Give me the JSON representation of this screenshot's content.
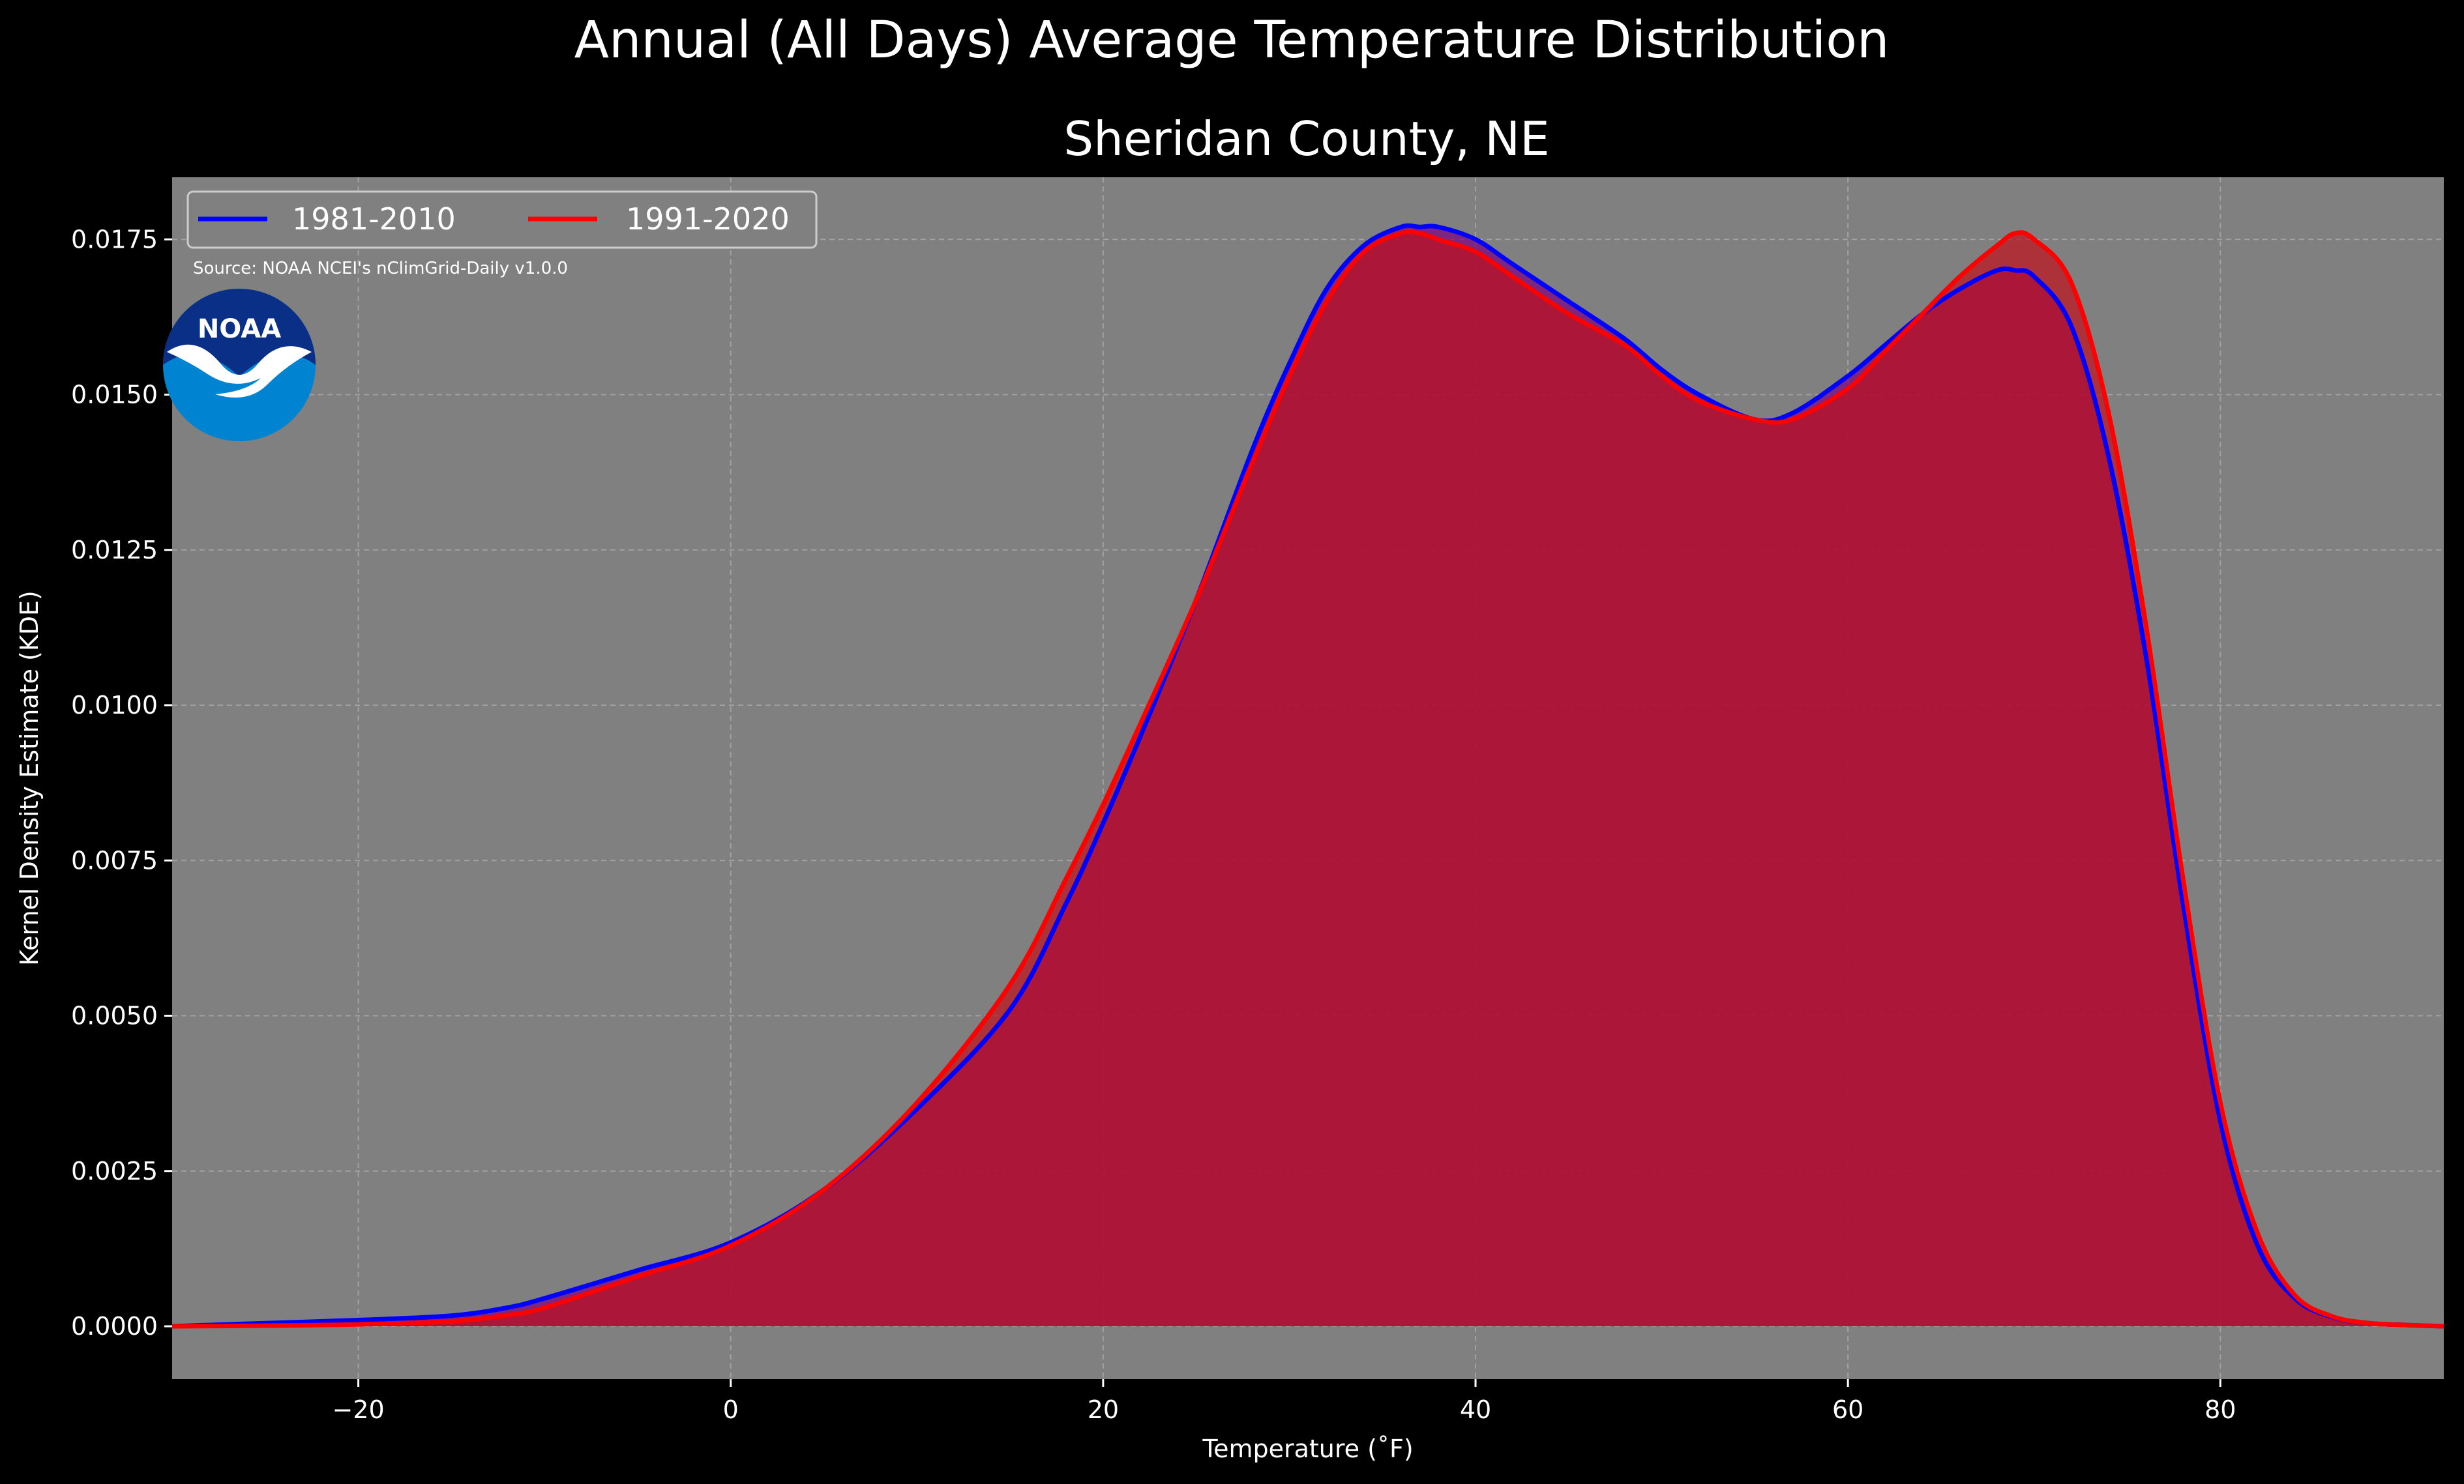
{
  "suptitle": "Annual (All Days) Average Temperature Distribution",
  "source_note": "Source: NOAA NCEI's nClimGrid-Daily v1.0.0",
  "logo": {
    "icon": "noaa-logo",
    "text": "NOAA"
  },
  "colors": {
    "background": "#000000",
    "plot_bg": "#808080",
    "series_1981": "#0000ff",
    "series_1991": "#ff0000",
    "fill_1981": "#7a0080",
    "fill_1991": "#c0101a",
    "grid": "#b0b0b0",
    "logo_dark": "#0a2f87",
    "logo_light": "#0084d1"
  },
  "chart_data": {
    "type": "area",
    "title": "Sheridan County, NE",
    "xlabel": "Temperature (˚F)",
    "ylabel": "Kernel Density Estimate (KDE)",
    "xlim": [
      -30,
      92
    ],
    "ylim": [
      -0.00085,
      0.0185
    ],
    "xticks": [
      -20,
      0,
      20,
      40,
      60,
      80
    ],
    "xtick_labels": [
      "−20",
      "0",
      "20",
      "40",
      "60",
      "80"
    ],
    "yticks": [
      0,
      0.0025,
      0.005,
      0.0075,
      0.01,
      0.0125,
      0.015,
      0.0175
    ],
    "ytick_labels": [
      "0.0000",
      "0.0025",
      "0.0050",
      "0.0075",
      "0.0100",
      "0.0125",
      "0.0150",
      "0.0175"
    ],
    "grid": true,
    "legend_position": "top-left",
    "series": [
      {
        "name": "1981-2010",
        "x": [
          -30,
          -25,
          -20,
          -15,
          -12,
          -10,
          -5,
          0,
          5,
          10,
          15,
          18,
          20,
          22,
          25,
          28,
          30,
          32,
          34,
          36,
          37,
          38,
          40,
          42,
          45,
          48,
          50,
          52,
          55,
          57,
          60,
          62,
          64,
          66,
          68,
          69,
          70,
          72,
          74,
          76,
          78,
          80,
          82,
          84,
          86,
          88,
          90,
          92
        ],
        "y": [
          0.0,
          5e-05,
          0.0001,
          0.00017,
          0.0003,
          0.00045,
          0.0009,
          0.00135,
          0.0022,
          0.0035,
          0.0051,
          0.0068,
          0.0081,
          0.0095,
          0.0117,
          0.0141,
          0.0155,
          0.0167,
          0.0174,
          0.0177,
          0.0177,
          0.0177,
          0.0175,
          0.0171,
          0.0165,
          0.0159,
          0.0154,
          0.015,
          0.0146,
          0.0147,
          0.0153,
          0.0158,
          0.0163,
          0.0167,
          0.017,
          0.017,
          0.0169,
          0.0161,
          0.014,
          0.0108,
          0.0068,
          0.0033,
          0.0013,
          0.00045,
          0.00015,
          5e-05,
          2e-05,
          0.0
        ],
        "color": "#0000ff"
      },
      {
        "name": "1991-2020",
        "x": [
          -30,
          -25,
          -20,
          -15,
          -12,
          -10,
          -5,
          0,
          5,
          10,
          15,
          18,
          20,
          22,
          25,
          28,
          30,
          32,
          34,
          36,
          37,
          38,
          40,
          42,
          45,
          48,
          50,
          52,
          55,
          57,
          60,
          62,
          64,
          66,
          68,
          69,
          70,
          72,
          74,
          76,
          78,
          80,
          82,
          84,
          86,
          88,
          90,
          92
        ],
        "y": [
          0.0,
          1e-05,
          3e-05,
          8e-05,
          0.00018,
          0.0003,
          0.0008,
          0.0013,
          0.0022,
          0.0036,
          0.0055,
          0.0072,
          0.0084,
          0.0097,
          0.0117,
          0.0139,
          0.0153,
          0.0165,
          0.0173,
          0.0176,
          0.0176,
          0.0175,
          0.0173,
          0.0169,
          0.0163,
          0.0158,
          0.0153,
          0.0149,
          0.0146,
          0.0146,
          0.0151,
          0.0157,
          0.0163,
          0.0169,
          0.0174,
          0.0176,
          0.0175,
          0.0168,
          0.0147,
          0.0113,
          0.0072,
          0.0036,
          0.0015,
          0.0005,
          0.00016,
          5e-05,
          2e-05,
          0.0
        ],
        "color": "#ff0000"
      }
    ]
  }
}
